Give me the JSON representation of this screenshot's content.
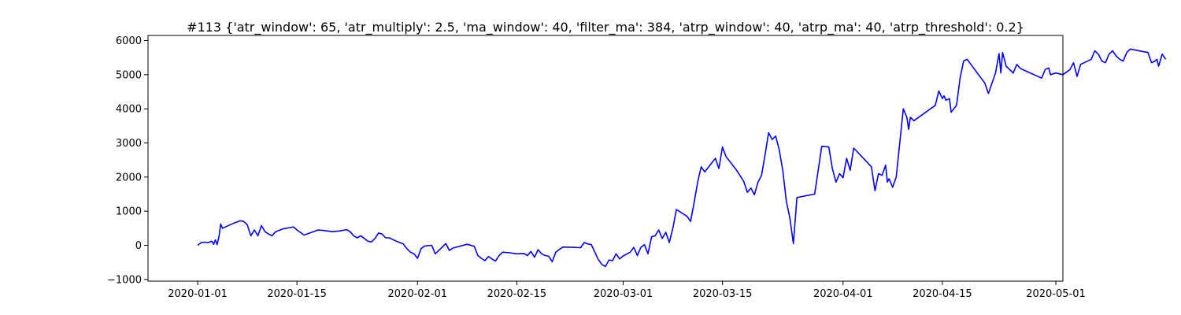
{
  "chart_data": {
    "type": "line",
    "title": "#113 {'atr_window': 65, 'atr_multiply': 2.5, 'ma_window': 40, 'filter_ma': 384, 'atrp_window': 40, 'atrp_ma': 40, 'atrp_threshold': 0.2}",
    "xlabel": "",
    "ylabel": "",
    "x_range": [
      "2019-12-25",
      "2020-05-02"
    ],
    "ylim": [
      -1050,
      6150
    ],
    "grid": false,
    "legend": "none",
    "colors": {
      "series": "#0000ff",
      "axis": "#000000",
      "background": "#ffffff"
    },
    "x_ticks": [
      "2020-01-01",
      "2020-01-15",
      "2020-02-01",
      "2020-02-15",
      "2020-03-01",
      "2020-03-15",
      "2020-04-01",
      "2020-04-15",
      "2020-05-01"
    ],
    "y_ticks": [
      -1000,
      0,
      1000,
      2000,
      3000,
      4000,
      5000,
      6000
    ],
    "series": [
      {
        "points": [
          [
            "2020-01-01",
            0
          ],
          [
            "2020-01-01T12",
            80
          ],
          [
            "2020-01-02",
            90
          ],
          [
            "2020-01-02T12",
            80
          ],
          [
            "2020-01-03",
            120
          ],
          [
            "2020-01-03T06",
            30
          ],
          [
            "2020-01-03T12",
            160
          ],
          [
            "2020-01-03T18",
            20
          ],
          [
            "2020-01-04",
            250
          ],
          [
            "2020-01-04T06",
            620
          ],
          [
            "2020-01-04T12",
            500
          ],
          [
            "2020-01-06",
            640
          ],
          [
            "2020-01-07",
            720
          ],
          [
            "2020-01-07T12",
            700
          ],
          [
            "2020-01-08",
            600
          ],
          [
            "2020-01-08T12",
            280
          ],
          [
            "2020-01-09",
            450
          ],
          [
            "2020-01-09T12",
            280
          ],
          [
            "2020-01-10",
            580
          ],
          [
            "2020-01-10T12",
            400
          ],
          [
            "2020-01-11",
            330
          ],
          [
            "2020-01-11T12",
            280
          ],
          [
            "2020-01-12",
            400
          ],
          [
            "2020-01-13",
            480
          ],
          [
            "2020-01-14",
            520
          ],
          [
            "2020-01-14T12",
            540
          ],
          [
            "2020-01-15",
            450
          ],
          [
            "2020-01-16",
            300
          ],
          [
            "2020-01-18",
            450
          ],
          [
            "2020-01-19",
            430
          ],
          [
            "2020-01-20",
            400
          ],
          [
            "2020-01-21",
            420
          ],
          [
            "2020-01-22",
            460
          ],
          [
            "2020-01-22T12",
            400
          ],
          [
            "2020-01-23",
            280
          ],
          [
            "2020-01-23T12",
            220
          ],
          [
            "2020-01-24",
            280
          ],
          [
            "2020-01-24T12",
            200
          ],
          [
            "2020-01-25",
            120
          ],
          [
            "2020-01-25T12",
            100
          ],
          [
            "2020-01-26",
            200
          ],
          [
            "2020-01-26T12",
            360
          ],
          [
            "2020-01-27",
            330
          ],
          [
            "2020-01-27T12",
            220
          ],
          [
            "2020-01-28",
            220
          ],
          [
            "2020-01-29",
            120
          ],
          [
            "2020-01-30",
            40
          ],
          [
            "2020-01-30T12",
            -100
          ],
          [
            "2020-01-31",
            -200
          ],
          [
            "2020-01-31T12",
            -250
          ],
          [
            "2020-02-01",
            -380
          ],
          [
            "2020-02-01T12",
            -100
          ],
          [
            "2020-02-02",
            -20
          ],
          [
            "2020-02-03",
            0
          ],
          [
            "2020-02-03T12",
            -250
          ],
          [
            "2020-02-05",
            50
          ],
          [
            "2020-02-05T12",
            -150
          ],
          [
            "2020-02-06",
            -80
          ],
          [
            "2020-02-08",
            30
          ],
          [
            "2020-02-09",
            -30
          ],
          [
            "2020-02-09T12",
            -300
          ],
          [
            "2020-02-10",
            -380
          ],
          [
            "2020-02-10T12",
            -450
          ],
          [
            "2020-02-11",
            -330
          ],
          [
            "2020-02-11T12",
            -400
          ],
          [
            "2020-02-12",
            -460
          ],
          [
            "2020-02-12T12",
            -300
          ],
          [
            "2020-02-13",
            -200
          ],
          [
            "2020-02-14",
            -220
          ],
          [
            "2020-02-15",
            -250
          ],
          [
            "2020-02-16",
            -240
          ],
          [
            "2020-02-16T12",
            -300
          ],
          [
            "2020-02-17",
            -180
          ],
          [
            "2020-02-17T12",
            -350
          ],
          [
            "2020-02-18",
            -130
          ],
          [
            "2020-02-18T12",
            -250
          ],
          [
            "2020-02-19",
            -300
          ],
          [
            "2020-02-19T12",
            -320
          ],
          [
            "2020-02-20",
            -480
          ],
          [
            "2020-02-20T12",
            -200
          ],
          [
            "2020-02-21",
            -120
          ],
          [
            "2020-02-21T12",
            -50
          ],
          [
            "2020-02-23",
            -60
          ],
          [
            "2020-02-24",
            -70
          ],
          [
            "2020-02-24T12",
            80
          ],
          [
            "2020-02-25",
            40
          ],
          [
            "2020-02-25T12",
            20
          ],
          [
            "2020-02-26",
            -200
          ],
          [
            "2020-02-26T12",
            -420
          ],
          [
            "2020-02-27",
            -560
          ],
          [
            "2020-02-27T12",
            -620
          ],
          [
            "2020-02-28",
            -430
          ],
          [
            "2020-02-28T12",
            -450
          ],
          [
            "2020-02-29",
            -250
          ],
          [
            "2020-02-29T12",
            -400
          ],
          [
            "2020-03-01",
            -310
          ],
          [
            "2020-03-02",
            -200
          ],
          [
            "2020-03-02T12",
            -60
          ],
          [
            "2020-03-03",
            -300
          ],
          [
            "2020-03-03T12",
            -60
          ],
          [
            "2020-03-04",
            20
          ],
          [
            "2020-03-04T12",
            -250
          ],
          [
            "2020-03-05",
            250
          ],
          [
            "2020-03-05T12",
            280
          ],
          [
            "2020-03-06",
            450
          ],
          [
            "2020-03-06T12",
            200
          ],
          [
            "2020-03-07",
            380
          ],
          [
            "2020-03-07T12",
            80
          ],
          [
            "2020-03-08",
            500
          ],
          [
            "2020-03-08T12",
            1050
          ],
          [
            "2020-03-10",
            850
          ],
          [
            "2020-03-10T12",
            700
          ],
          [
            "2020-03-11",
            1250
          ],
          [
            "2020-03-11T12",
            1850
          ],
          [
            "2020-03-12",
            2300
          ],
          [
            "2020-03-12T12",
            2150
          ],
          [
            "2020-03-14",
            2550
          ],
          [
            "2020-03-14T12",
            2250
          ],
          [
            "2020-03-15",
            2880
          ],
          [
            "2020-03-15T12",
            2600
          ],
          [
            "2020-03-17",
            2200
          ],
          [
            "2020-03-18",
            1870
          ],
          [
            "2020-03-18T12",
            1550
          ],
          [
            "2020-03-19",
            1680
          ],
          [
            "2020-03-19T12",
            1480
          ],
          [
            "2020-03-20",
            1850
          ],
          [
            "2020-03-20T12",
            2050
          ],
          [
            "2020-03-21",
            2650
          ],
          [
            "2020-03-21T12",
            3300
          ],
          [
            "2020-03-22",
            3100
          ],
          [
            "2020-03-22T12",
            3200
          ],
          [
            "2020-03-23",
            2800
          ],
          [
            "2020-03-23T12",
            2200
          ],
          [
            "2020-03-24",
            1300
          ],
          [
            "2020-03-24T12",
            800
          ],
          [
            "2020-03-25",
            50
          ],
          [
            "2020-03-25T12",
            1400
          ],
          [
            "2020-03-28",
            1500
          ],
          [
            "2020-03-28T12",
            2200
          ],
          [
            "2020-03-29",
            2900
          ],
          [
            "2020-03-30",
            2880
          ],
          [
            "2020-03-30T12",
            2250
          ],
          [
            "2020-03-31",
            1850
          ],
          [
            "2020-03-31T12",
            2100
          ],
          [
            "2020-04-01",
            1980
          ],
          [
            "2020-04-01T12",
            2550
          ],
          [
            "2020-04-02",
            2200
          ],
          [
            "2020-04-02T12",
            2850
          ],
          [
            "2020-04-05",
            2300
          ],
          [
            "2020-04-05T12",
            1600
          ],
          [
            "2020-04-06",
            2100
          ],
          [
            "2020-04-06T12",
            2050
          ],
          [
            "2020-04-07",
            2350
          ],
          [
            "2020-04-07T06",
            1850
          ],
          [
            "2020-04-07T12",
            1950
          ],
          [
            "2020-04-08",
            1700
          ],
          [
            "2020-04-08T12",
            2000
          ],
          [
            "2020-04-09",
            3000
          ],
          [
            "2020-04-09T12",
            4000
          ],
          [
            "2020-04-10",
            3750
          ],
          [
            "2020-04-10T06",
            3400
          ],
          [
            "2020-04-10T12",
            3750
          ],
          [
            "2020-04-11",
            3650
          ],
          [
            "2020-04-14",
            4100
          ],
          [
            "2020-04-14T12",
            4520
          ],
          [
            "2020-04-15",
            4300
          ],
          [
            "2020-04-15T06",
            4380
          ],
          [
            "2020-04-15T12",
            4250
          ],
          [
            "2020-04-16",
            4300
          ],
          [
            "2020-04-16T06",
            3900
          ],
          [
            "2020-04-17",
            4100
          ],
          [
            "2020-04-17T12",
            4900
          ],
          [
            "2020-04-18",
            5400
          ],
          [
            "2020-04-18T12",
            5450
          ],
          [
            "2020-04-21",
            4750
          ],
          [
            "2020-04-21T12",
            4450
          ],
          [
            "2020-04-22",
            4750
          ],
          [
            "2020-04-22T12",
            5050
          ],
          [
            "2020-04-23",
            5620
          ],
          [
            "2020-04-23T06",
            5050
          ],
          [
            "2020-04-23T12",
            5650
          ],
          [
            "2020-04-24",
            5250
          ],
          [
            "2020-04-24T12",
            5150
          ],
          [
            "2020-04-25",
            5050
          ],
          [
            "2020-04-25T12",
            5300
          ],
          [
            "2020-04-26",
            5180
          ],
          [
            "2020-04-29",
            4900
          ],
          [
            "2020-04-29T12",
            5150
          ],
          [
            "2020-04-30",
            5200
          ],
          [
            "2020-04-30T06",
            5000
          ],
          [
            "2020-05-01",
            5050
          ],
          [
            "2020-05-02",
            5000
          ],
          [
            "2020-05-03",
            5150
          ],
          [
            "2020-05-03T12",
            5350
          ],
          [
            "2020-05-04",
            4950
          ],
          [
            "2020-05-04T12",
            5300
          ],
          [
            "2020-05-06",
            5450
          ],
          [
            "2020-05-06T12",
            5700
          ],
          [
            "2020-05-07",
            5600
          ],
          [
            "2020-05-07T12",
            5400
          ],
          [
            "2020-05-08",
            5350
          ],
          [
            "2020-05-08T12",
            5600
          ],
          [
            "2020-05-09",
            5700
          ],
          [
            "2020-05-09T12",
            5550
          ],
          [
            "2020-05-10",
            5450
          ],
          [
            "2020-05-10T12",
            5400
          ],
          [
            "2020-05-11",
            5650
          ],
          [
            "2020-05-11T12",
            5750
          ],
          [
            "2020-05-14",
            5650
          ],
          [
            "2020-05-14T12",
            5350
          ],
          [
            "2020-05-15",
            5400
          ],
          [
            "2020-05-15T06",
            5450
          ],
          [
            "2020-05-15T12",
            5250
          ],
          [
            "2020-05-16",
            5600
          ],
          [
            "2020-05-16T12",
            5450
          ]
        ]
      }
    ]
  }
}
